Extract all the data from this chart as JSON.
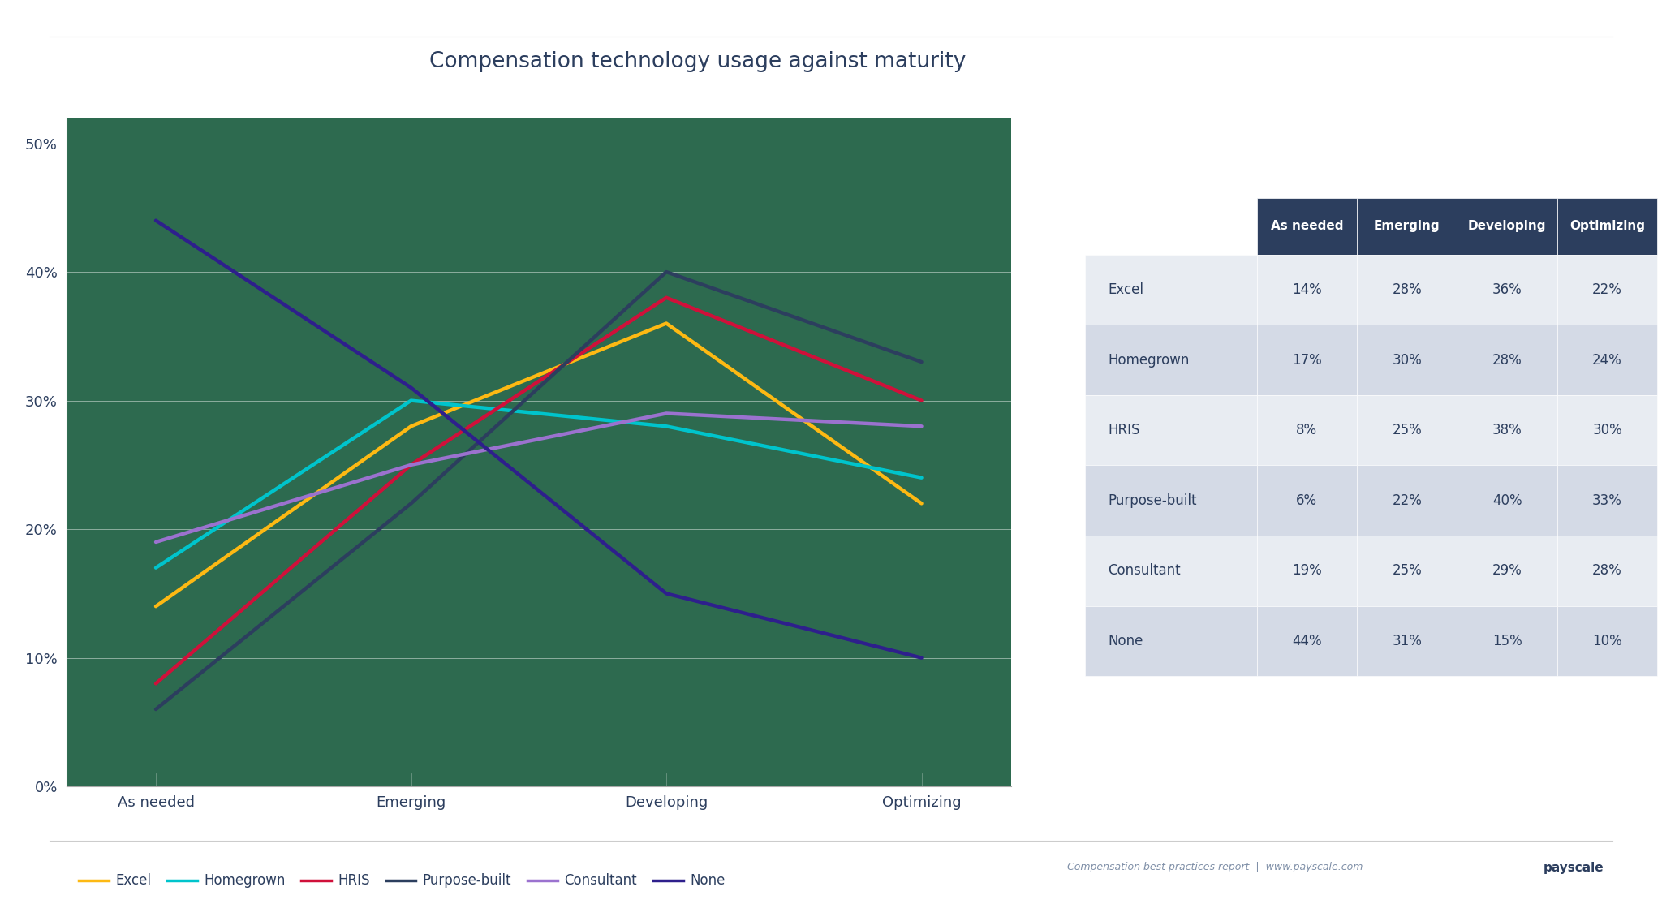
{
  "title": "Compensation technology usage against maturity",
  "categories": [
    "As needed",
    "Emerging",
    "Developing",
    "Optimizing"
  ],
  "series": {
    "Excel": [
      14,
      28,
      36,
      22
    ],
    "Homegrown": [
      17,
      30,
      28,
      24
    ],
    "HRIS": [
      8,
      25,
      38,
      30
    ],
    "Purpose-built": [
      6,
      22,
      40,
      33
    ],
    "Consultant": [
      19,
      25,
      29,
      28
    ],
    "None": [
      44,
      31,
      15,
      10
    ]
  },
  "colors": {
    "Excel": "#FDB913",
    "Homegrown": "#00C4CC",
    "HRIS": "#D0103A",
    "Purpose-built": "#2C3E5E",
    "Consultant": "#9B72CF",
    "None": "#2E1F8C"
  },
  "page_background": "#FFFFFF",
  "plot_background": "#2D6A4F",
  "grid_color": "#FFFFFF",
  "grid_alpha": 0.45,
  "tick_color": "#2C3E5E",
  "title_color": "#2C3E5E",
  "line_width": 3.2,
  "ylim": [
    0,
    52
  ],
  "yticks": [
    0,
    10,
    20,
    30,
    40,
    50
  ],
  "table_header_bg": "#2C3E5E",
  "table_header_text": "#FFFFFF",
  "table_header_fontsize": 11,
  "table_row_bg_odd": "#E8ECF2",
  "table_row_bg_even": "#D4DAE6",
  "table_text_color": "#2C3E5E",
  "table_text_fontsize": 12,
  "table_rows": [
    [
      "Excel",
      "14%",
      "28%",
      "36%",
      "22%"
    ],
    [
      "Homegrown",
      "17%",
      "30%",
      "28%",
      "24%"
    ],
    [
      "HRIS",
      "8%",
      "25%",
      "38%",
      "30%"
    ],
    [
      "Purpose-built",
      "6%",
      "22%",
      "40%",
      "33%"
    ],
    [
      "Consultant",
      "19%",
      "25%",
      "29%",
      "28%"
    ],
    [
      "None",
      "44%",
      "31%",
      "15%",
      "10%"
    ]
  ],
  "footer_text": "Compensation best practices report  |  www.payscale.com",
  "footer_color": "#8090A8",
  "legend_label_color": "#2C3E5E"
}
